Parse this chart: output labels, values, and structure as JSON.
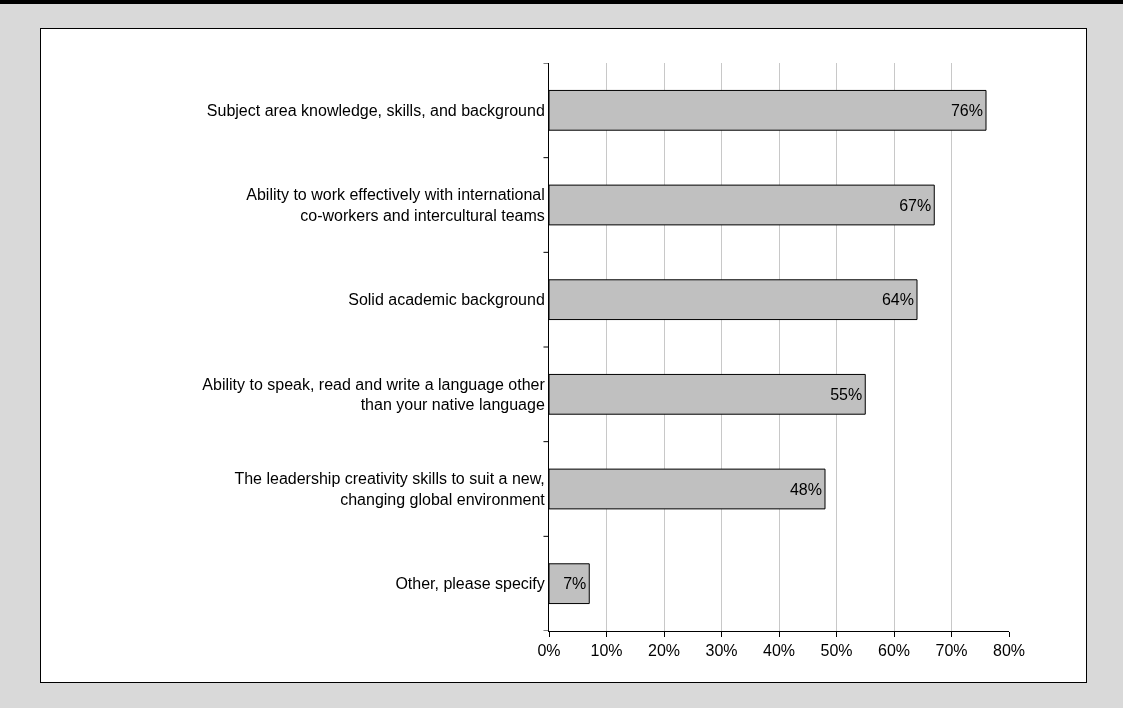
{
  "chart_data": {
    "type": "bar",
    "orientation": "horizontal",
    "categories": [
      "Subject area knowledge, skills, and background",
      "Ability to work effectively with international co-workers and intercultural teams",
      "Solid academic background",
      "Ability to speak, read and write a language other than your native language",
      "The leadership creativity skills to suit a new, changing global environment",
      "Other, please specify"
    ],
    "values": [
      76,
      67,
      64,
      55,
      48,
      7
    ],
    "value_labels": [
      "76%",
      "67%",
      "64%",
      "55%",
      "48%",
      "7%"
    ],
    "color": "#c0c0c0",
    "xlim": [
      0,
      80
    ],
    "xticks": [
      {
        "value": 0,
        "label": "0%"
      },
      {
        "value": 10,
        "label": "10%"
      },
      {
        "value": 20,
        "label": "20%"
      },
      {
        "value": 30,
        "label": "30%"
      },
      {
        "value": 40,
        "label": "40%"
      },
      {
        "value": 50,
        "label": "50%"
      },
      {
        "value": 60,
        "label": "60%"
      },
      {
        "value": 70,
        "label": "70%"
      },
      {
        "value": 80,
        "label": "80%"
      }
    ],
    "grid": "x",
    "legend": false
  }
}
